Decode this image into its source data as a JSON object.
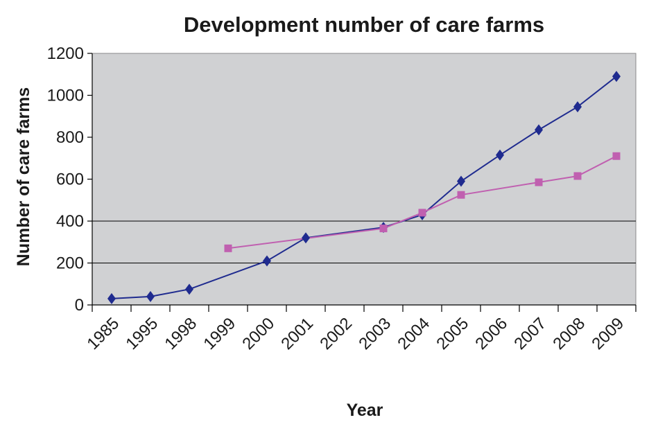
{
  "chart_data": {
    "type": "line",
    "title": "Development number of care farms",
    "xlabel": "Year",
    "ylabel": "Number of care farms",
    "categories": [
      "1985",
      "1995",
      "1998",
      "1999",
      "2000",
      "2001",
      "2002",
      "2003",
      "2004",
      "2005",
      "2006",
      "2007",
      "2008",
      "2009"
    ],
    "ylim": [
      0,
      1200
    ],
    "yticks": [
      0,
      200,
      400,
      600,
      800,
      1000,
      1200
    ],
    "grid": "horizontal lines at 200 and 400",
    "legend": "none",
    "series": [
      {
        "marker": "diamond",
        "color": "#1f2b8f",
        "values": [
          30,
          40,
          75,
          null,
          210,
          320,
          null,
          370,
          430,
          590,
          715,
          835,
          945,
          1090
        ]
      },
      {
        "marker": "square",
        "color": "#c060b0",
        "values": [
          null,
          null,
          null,
          270,
          null,
          null,
          null,
          365,
          440,
          525,
          null,
          585,
          615,
          710
        ]
      }
    ],
    "colors": {
      "plot_background": "#d0d1d3",
      "axis": "#000000"
    }
  }
}
